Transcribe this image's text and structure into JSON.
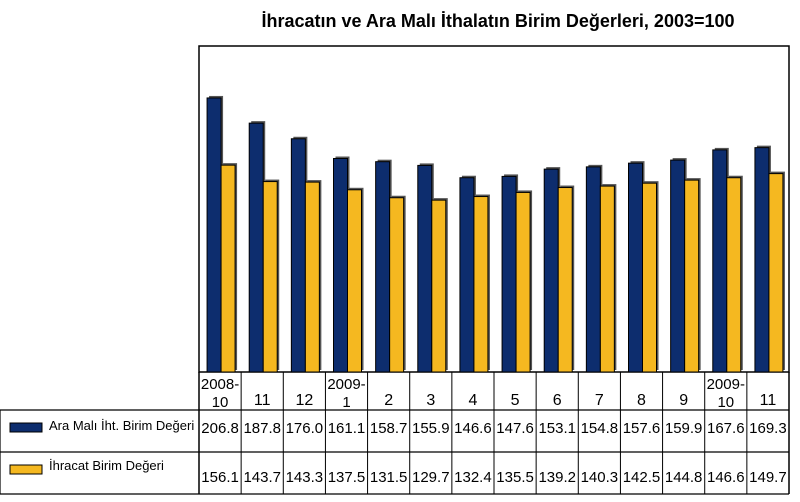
{
  "chart_data": {
    "type": "bar",
    "title": "İhracatın ve Ara Malı İthalatın Birim Değerleri, 2003=100",
    "categories": [
      [
        "2008-",
        "10"
      ],
      [
        "11"
      ],
      [
        "12"
      ],
      [
        "2009-",
        "1"
      ],
      [
        "2"
      ],
      [
        "3"
      ],
      [
        "4"
      ],
      [
        "5"
      ],
      [
        "6"
      ],
      [
        "7"
      ],
      [
        "8"
      ],
      [
        "9"
      ],
      [
        "2009-",
        "10"
      ],
      [
        "11"
      ]
    ],
    "series": [
      {
        "name": "Ara Malı İht. Birim Değeri",
        "color": "#0d2d6e",
        "values": [
          206.8,
          187.8,
          176.0,
          161.1,
          158.7,
          155.9,
          146.6,
          147.6,
          153.1,
          154.8,
          157.6,
          159.9,
          167.6,
          169.3
        ]
      },
      {
        "name": "İhracat Birim Değeri",
        "color": "#f5b820",
        "values": [
          156.1,
          143.7,
          143.3,
          137.5,
          131.5,
          129.7,
          132.4,
          135.5,
          139.2,
          140.3,
          142.5,
          144.8,
          146.6,
          149.7
        ]
      }
    ],
    "ylim": [
      0,
      246
    ],
    "grid": false,
    "legend": "data-table-left",
    "xlabel": "",
    "ylabel": ""
  }
}
